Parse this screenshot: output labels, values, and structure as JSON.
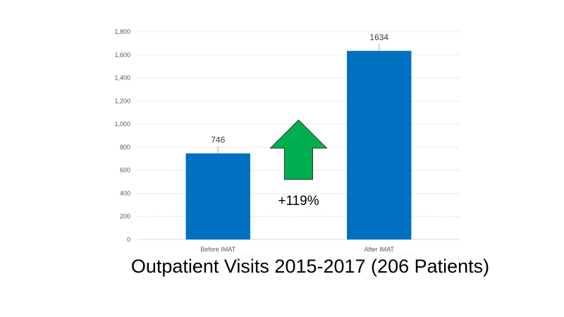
{
  "chart_data": {
    "type": "bar",
    "categories": [
      "Before IMAT",
      "After IMAT"
    ],
    "values": [
      746,
      1634
    ],
    "data_labels": [
      "746",
      "1634"
    ],
    "title": "Outpatient Visits 2015-2017 (206 Patients)",
    "xlabel": "",
    "ylabel": "",
    "ylim": [
      0,
      1800
    ],
    "yticks": [
      0,
      200,
      400,
      600,
      800,
      1000,
      1200,
      1400,
      1600,
      1800
    ],
    "ytick_labels": [
      "0",
      "200",
      "400",
      "600",
      "800",
      "1,000",
      "1,200",
      "1,400",
      "1,600",
      "1,800"
    ],
    "grid": true,
    "legend": "none",
    "bar_color": "#0070C0",
    "annotation": {
      "text": "+119%",
      "icon": "up-arrow-icon",
      "color": "#00B050"
    }
  }
}
